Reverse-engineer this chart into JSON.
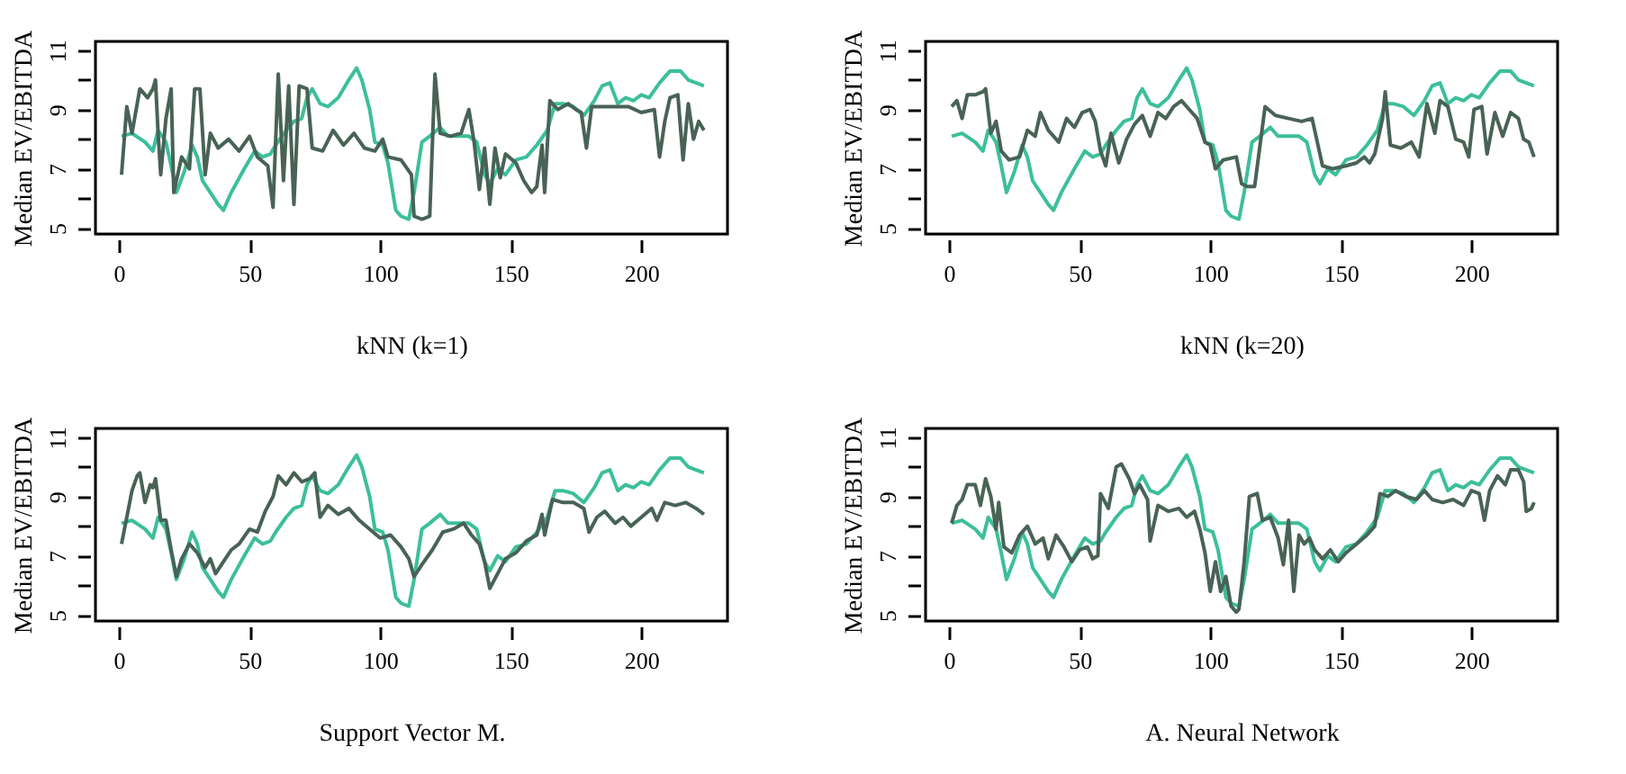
{
  "chart_data": [
    {
      "type": "line",
      "xlabel": "kNN (k=1)",
      "ylabel": "Median EV/EBITDA",
      "xlim": [
        -9,
        233
      ],
      "ylim": [
        4.8,
        11.3
      ],
      "xticks": [
        0,
        50,
        100,
        150,
        200
      ],
      "yticks": [
        5,
        {
          "value": 6,
          "label": null
        },
        7,
        {
          "value": 8,
          "label": null
        },
        9,
        {
          "value": 10,
          "label": null
        },
        11
      ],
      "grid": false,
      "series": [
        {
          "color": "#3cbf9b",
          "x": [
            1,
            5,
            10,
            13,
            15,
            18,
            20,
            22,
            25,
            28,
            30,
            32,
            35,
            38,
            40,
            43,
            48,
            52,
            55,
            58,
            60,
            64,
            67,
            70,
            72,
            74,
            77,
            80,
            84,
            88,
            91,
            93,
            96,
            98,
            101,
            103,
            106,
            108,
            111,
            113,
            116,
            119,
            123,
            126,
            130,
            134,
            137,
            140,
            142,
            145,
            148,
            152,
            156,
            160,
            164,
            167,
            170,
            174,
            178,
            182,
            185,
            188,
            191,
            194,
            197,
            200,
            203,
            207,
            211,
            215,
            218,
            221,
            224
          ],
          "values": [
            8.1,
            8.2,
            7.9,
            7.6,
            8.3,
            7.9,
            7.1,
            6.2,
            6.9,
            7.8,
            7.4,
            6.6,
            6.2,
            5.8,
            5.6,
            6.2,
            7.0,
            7.6,
            7.4,
            7.5,
            7.8,
            8.3,
            8.6,
            8.7,
            9.4,
            9.7,
            9.2,
            9.1,
            9.4,
            10.0,
            10.4,
            10.0,
            9.0,
            7.9,
            7.8,
            7.2,
            5.6,
            5.4,
            5.3,
            6.2,
            7.9,
            8.1,
            8.4,
            8.1,
            8.1,
            8.1,
            7.9,
            6.8,
            6.5,
            7.0,
            6.8,
            7.3,
            7.4,
            7.8,
            8.3,
            9.2,
            9.2,
            9.1,
            8.8,
            9.3,
            9.8,
            9.9,
            9.2,
            9.4,
            9.3,
            9.5,
            9.4,
            9.9,
            10.3,
            10.3,
            10.0,
            9.9,
            9.8
          ]
        },
        {
          "color": "#486356",
          "x": [
            1,
            3,
            5,
            8,
            11,
            13,
            14,
            15,
            16,
            18,
            20,
            21,
            24,
            27,
            29,
            31,
            33,
            35,
            38,
            42,
            46,
            50,
            53,
            57,
            59,
            61,
            63,
            65,
            67,
            69,
            72,
            74,
            78,
            82,
            86,
            90,
            94,
            98,
            101,
            103,
            108,
            112,
            113,
            116,
            119,
            121,
            123,
            127,
            131,
            134,
            136,
            138,
            140,
            142,
            144,
            146,
            148,
            152,
            155,
            158,
            160,
            162,
            163,
            165,
            168,
            172,
            175,
            177,
            179,
            181,
            186,
            190,
            195,
            200,
            205,
            207,
            209,
            211,
            214,
            216,
            218,
            220,
            222,
            224
          ],
          "values": [
            6.8,
            9.1,
            8.2,
            9.7,
            9.4,
            9.7,
            10.0,
            8.2,
            6.8,
            8.7,
            9.7,
            6.2,
            7.4,
            7.0,
            9.7,
            9.7,
            6.8,
            8.2,
            7.7,
            8.0,
            7.6,
            8.1,
            7.4,
            7.1,
            5.7,
            10.2,
            6.6,
            9.8,
            5.8,
            9.8,
            9.7,
            7.7,
            7.6,
            8.3,
            7.8,
            8.2,
            7.7,
            7.6,
            8.0,
            7.4,
            7.3,
            6.8,
            5.4,
            5.3,
            5.4,
            10.2,
            8.2,
            8.1,
            8.2,
            9.0,
            7.9,
            6.3,
            7.7,
            5.8,
            7.7,
            6.7,
            7.5,
            7.2,
            6.6,
            6.2,
            6.4,
            7.8,
            6.2,
            9.3,
            9.0,
            9.2,
            9.0,
            8.9,
            7.7,
            9.1,
            9.1,
            9.1,
            9.1,
            8.9,
            9.0,
            7.4,
            8.6,
            9.4,
            9.5,
            7.3,
            9.2,
            8.0,
            8.6,
            8.3
          ]
        }
      ]
    },
    {
      "type": "line",
      "xlabel": "kNN (k=20)",
      "ylabel": "Median EV/EBITDA",
      "xlim": [
        -9,
        233
      ],
      "ylim": [
        4.8,
        11.3
      ],
      "xticks": [
        0,
        50,
        100,
        150,
        200
      ],
      "yticks": [
        5,
        {
          "value": 6,
          "label": null
        },
        7,
        {
          "value": 8,
          "label": null
        },
        9,
        {
          "value": 10,
          "label": null
        },
        11
      ],
      "grid": false,
      "series": [
        {
          "color": "#3cbf9b",
          "x": [
            1,
            5,
            10,
            13,
            15,
            18,
            20,
            22,
            25,
            28,
            30,
            32,
            35,
            38,
            40,
            43,
            48,
            52,
            55,
            58,
            60,
            64,
            67,
            70,
            72,
            74,
            77,
            80,
            84,
            88,
            91,
            93,
            96,
            98,
            101,
            103,
            106,
            108,
            111,
            113,
            116,
            119,
            123,
            126,
            130,
            134,
            137,
            140,
            142,
            145,
            148,
            152,
            156,
            160,
            164,
            167,
            170,
            174,
            178,
            182,
            185,
            188,
            191,
            194,
            197,
            200,
            203,
            207,
            211,
            215,
            218,
            221,
            224
          ],
          "values": [
            8.1,
            8.2,
            7.9,
            7.6,
            8.3,
            7.9,
            7.1,
            6.2,
            6.9,
            7.8,
            7.4,
            6.6,
            6.2,
            5.8,
            5.6,
            6.2,
            7.0,
            7.6,
            7.4,
            7.5,
            7.8,
            8.3,
            8.6,
            8.7,
            9.4,
            9.7,
            9.2,
            9.1,
            9.4,
            10.0,
            10.4,
            10.0,
            9.0,
            7.9,
            7.8,
            7.2,
            5.6,
            5.4,
            5.3,
            6.2,
            7.9,
            8.1,
            8.4,
            8.1,
            8.1,
            8.1,
            7.9,
            6.8,
            6.5,
            7.0,
            6.8,
            7.3,
            7.4,
            7.8,
            8.3,
            9.2,
            9.2,
            9.1,
            8.8,
            9.3,
            9.8,
            9.9,
            9.2,
            9.4,
            9.3,
            9.5,
            9.4,
            9.9,
            10.3,
            10.3,
            10.0,
            9.9,
            9.8
          ]
        },
        {
          "color": "#486356",
          "x": [
            1,
            3,
            5,
            7,
            10,
            13,
            14,
            16,
            18,
            20,
            23,
            27,
            30,
            33,
            35,
            38,
            42,
            45,
            48,
            51,
            54,
            56,
            58,
            60,
            62,
            65,
            68,
            71,
            74,
            77,
            80,
            83,
            86,
            89,
            92,
            95,
            98,
            100,
            102,
            105,
            110,
            112,
            114,
            117,
            121,
            125,
            130,
            135,
            139,
            141,
            143,
            147,
            152,
            156,
            159,
            161,
            163,
            166,
            167,
            169,
            173,
            177,
            180,
            183,
            186,
            188,
            191,
            194,
            197,
            199,
            201,
            204,
            206,
            209,
            212,
            215,
            218,
            220,
            222,
            224
          ],
          "values": [
            9.1,
            9.3,
            8.7,
            9.5,
            9.5,
            9.6,
            9.7,
            8.2,
            8.6,
            7.6,
            7.3,
            7.4,
            8.3,
            8.1,
            8.9,
            8.3,
            7.9,
            8.7,
            8.4,
            8.9,
            9.0,
            8.6,
            7.6,
            7.1,
            8.2,
            7.2,
            8.0,
            8.5,
            8.8,
            8.1,
            8.9,
            8.7,
            9.1,
            9.3,
            9.0,
            8.7,
            7.9,
            7.8,
            7.0,
            7.3,
            7.4,
            6.5,
            6.4,
            6.4,
            9.1,
            8.8,
            8.7,
            8.6,
            8.7,
            7.9,
            7.1,
            7.0,
            7.1,
            7.2,
            7.4,
            7.2,
            7.5,
            8.7,
            9.6,
            7.8,
            7.7,
            7.9,
            7.4,
            9.2,
            8.2,
            9.3,
            9.1,
            8.0,
            7.9,
            7.4,
            9.0,
            9.1,
            7.5,
            8.9,
            8.1,
            8.9,
            8.7,
            8.0,
            7.9,
            7.4
          ]
        }
      ]
    },
    {
      "type": "line",
      "xlabel": "Support Vector M.",
      "ylabel": "Median EV/EBITDA",
      "xlim": [
        -9,
        233
      ],
      "ylim": [
        4.8,
        11.3
      ],
      "xticks": [
        0,
        50,
        100,
        150,
        200
      ],
      "yticks": [
        5,
        {
          "value": 6,
          "label": null
        },
        7,
        {
          "value": 8,
          "label": null
        },
        9,
        {
          "value": 10,
          "label": null
        },
        11
      ],
      "grid": false,
      "series": [
        {
          "color": "#3cbf9b",
          "x": [
            1,
            5,
            10,
            13,
            15,
            18,
            20,
            22,
            25,
            28,
            30,
            32,
            35,
            38,
            40,
            43,
            48,
            52,
            55,
            58,
            60,
            64,
            67,
            70,
            72,
            74,
            77,
            80,
            84,
            88,
            91,
            93,
            96,
            98,
            101,
            103,
            106,
            108,
            111,
            113,
            116,
            119,
            123,
            126,
            130,
            134,
            137,
            140,
            142,
            145,
            148,
            152,
            156,
            160,
            164,
            167,
            170,
            174,
            178,
            182,
            185,
            188,
            191,
            194,
            197,
            200,
            203,
            207,
            211,
            215,
            218,
            221,
            224
          ],
          "values": [
            8.1,
            8.2,
            7.9,
            7.6,
            8.3,
            7.9,
            7.1,
            6.2,
            6.9,
            7.8,
            7.4,
            6.6,
            6.2,
            5.8,
            5.6,
            6.2,
            7.0,
            7.6,
            7.4,
            7.5,
            7.8,
            8.3,
            8.6,
            8.7,
            9.4,
            9.7,
            9.2,
            9.1,
            9.4,
            10.0,
            10.4,
            10.0,
            9.0,
            7.9,
            7.8,
            7.2,
            5.6,
            5.4,
            5.3,
            6.2,
            7.9,
            8.1,
            8.4,
            8.1,
            8.1,
            8.1,
            7.9,
            6.8,
            6.5,
            7.0,
            6.8,
            7.3,
            7.4,
            7.8,
            8.3,
            9.2,
            9.2,
            9.1,
            8.8,
            9.3,
            9.8,
            9.9,
            9.2,
            9.4,
            9.3,
            9.5,
            9.4,
            9.9,
            10.3,
            10.3,
            10.0,
            9.9,
            9.8
          ]
        },
        {
          "color": "#486356",
          "x": [
            1,
            3,
            5,
            7,
            8,
            10,
            12,
            13,
            14,
            16,
            18,
            20,
            22,
            24,
            27,
            30,
            33,
            35,
            37,
            40,
            43,
            46,
            50,
            53,
            56,
            59,
            61,
            64,
            67,
            70,
            73,
            75,
            77,
            80,
            84,
            88,
            92,
            96,
            100,
            104,
            108,
            111,
            113,
            116,
            120,
            124,
            128,
            132,
            135,
            138,
            140,
            142,
            145,
            148,
            152,
            156,
            160,
            162,
            163,
            166,
            170,
            174,
            178,
            180,
            183,
            186,
            190,
            193,
            196,
            200,
            204,
            206,
            209,
            213,
            217,
            221,
            224
          ],
          "values": [
            7.4,
            8.3,
            9.2,
            9.7,
            9.8,
            8.8,
            9.4,
            9.3,
            9.6,
            8.2,
            8.2,
            7.2,
            6.3,
            6.9,
            7.4,
            7.1,
            6.6,
            6.9,
            6.4,
            6.8,
            7.2,
            7.4,
            7.9,
            7.8,
            8.5,
            9.0,
            9.7,
            9.4,
            9.8,
            9.5,
            9.6,
            9.8,
            8.3,
            8.7,
            8.4,
            8.6,
            8.2,
            7.9,
            7.6,
            7.7,
            7.3,
            6.9,
            6.3,
            6.7,
            7.2,
            7.8,
            7.9,
            8.1,
            7.7,
            7.4,
            6.8,
            5.9,
            6.4,
            6.9,
            7.1,
            7.5,
            7.7,
            8.4,
            7.7,
            8.9,
            8.8,
            8.8,
            8.6,
            7.8,
            8.3,
            8.5,
            8.1,
            8.3,
            8.0,
            8.3,
            8.6,
            8.2,
            8.8,
            8.7,
            8.8,
            8.6,
            8.4
          ]
        }
      ]
    },
    {
      "type": "line",
      "xlabel": "A. Neural Network",
      "ylabel": "Median EV/EBITDA",
      "xlim": [
        -9,
        233
      ],
      "ylim": [
        4.8,
        11.3
      ],
      "xticks": [
        0,
        50,
        100,
        150,
        200
      ],
      "yticks": [
        5,
        {
          "value": 6,
          "label": null
        },
        7,
        {
          "value": 8,
          "label": null
        },
        9,
        {
          "value": 10,
          "label": null
        },
        11
      ],
      "grid": false,
      "series": [
        {
          "color": "#3cbf9b",
          "x": [
            1,
            5,
            10,
            13,
            15,
            18,
            20,
            22,
            25,
            28,
            30,
            32,
            35,
            38,
            40,
            43,
            48,
            52,
            55,
            58,
            60,
            64,
            67,
            70,
            72,
            74,
            77,
            80,
            84,
            88,
            91,
            93,
            96,
            98,
            101,
            103,
            106,
            108,
            111,
            113,
            116,
            119,
            123,
            126,
            130,
            134,
            137,
            140,
            142,
            145,
            148,
            152,
            156,
            160,
            164,
            167,
            170,
            174,
            178,
            182,
            185,
            188,
            191,
            194,
            197,
            200,
            203,
            207,
            211,
            215,
            218,
            221,
            224
          ],
          "values": [
            8.1,
            8.2,
            7.9,
            7.6,
            8.3,
            7.9,
            7.1,
            6.2,
            6.9,
            7.8,
            7.4,
            6.6,
            6.2,
            5.8,
            5.6,
            6.2,
            7.0,
            7.6,
            7.4,
            7.5,
            7.8,
            8.3,
            8.6,
            8.7,
            9.4,
            9.7,
            9.2,
            9.1,
            9.4,
            10.0,
            10.4,
            10.0,
            9.0,
            7.9,
            7.8,
            7.2,
            5.6,
            5.4,
            5.3,
            6.2,
            7.9,
            8.1,
            8.4,
            8.1,
            8.1,
            8.1,
            7.9,
            6.8,
            6.5,
            7.0,
            6.8,
            7.3,
            7.4,
            7.8,
            8.3,
            9.2,
            9.2,
            9.1,
            8.8,
            9.3,
            9.8,
            9.9,
            9.2,
            9.4,
            9.3,
            9.5,
            9.4,
            9.9,
            10.3,
            10.3,
            10.0,
            9.9,
            9.8
          ]
        },
        {
          "color": "#486356",
          "x": [
            1,
            3,
            5,
            7,
            10,
            12,
            14,
            16,
            18,
            19,
            21,
            24,
            27,
            30,
            33,
            36,
            38,
            41,
            44,
            47,
            50,
            53,
            55,
            57,
            58,
            61,
            64,
            66,
            69,
            71,
            73,
            76,
            77,
            80,
            84,
            88,
            91,
            94,
            96,
            98,
            100,
            102,
            104,
            106,
            108,
            110,
            111,
            113,
            115,
            118,
            120,
            123,
            126,
            128,
            130,
            132,
            134,
            136,
            138,
            140,
            143,
            146,
            149,
            152,
            156,
            160,
            163,
            165,
            168,
            171,
            175,
            179,
            182,
            185,
            189,
            193,
            197,
            200,
            203,
            205,
            207,
            210,
            213,
            215,
            218,
            220,
            221,
            223,
            224
          ],
          "values": [
            8.1,
            8.7,
            8.9,
            9.4,
            9.4,
            8.7,
            9.6,
            9.0,
            7.9,
            8.8,
            7.3,
            7.1,
            7.7,
            8.0,
            7.4,
            7.6,
            6.9,
            7.7,
            7.3,
            6.8,
            7.2,
            7.3,
            6.9,
            7.0,
            9.1,
            8.6,
            10.0,
            10.1,
            9.6,
            9.1,
            9.4,
            8.9,
            7.5,
            8.7,
            8.5,
            8.6,
            8.3,
            8.5,
            7.9,
            7.1,
            5.8,
            6.8,
            5.8,
            6.3,
            5.3,
            5.1,
            5.2,
            6.8,
            9.0,
            9.1,
            8.2,
            8.3,
            7.6,
            6.7,
            8.2,
            5.8,
            7.7,
            7.4,
            7.6,
            7.2,
            6.9,
            7.2,
            6.8,
            7.1,
            7.4,
            7.7,
            8.0,
            9.1,
            9.0,
            9.2,
            9.0,
            8.9,
            9.2,
            8.9,
            8.8,
            8.9,
            8.7,
            9.2,
            9.1,
            8.2,
            9.2,
            9.7,
            9.4,
            9.9,
            9.9,
            9.5,
            8.5,
            8.6,
            8.8
          ]
        }
      ]
    }
  ]
}
